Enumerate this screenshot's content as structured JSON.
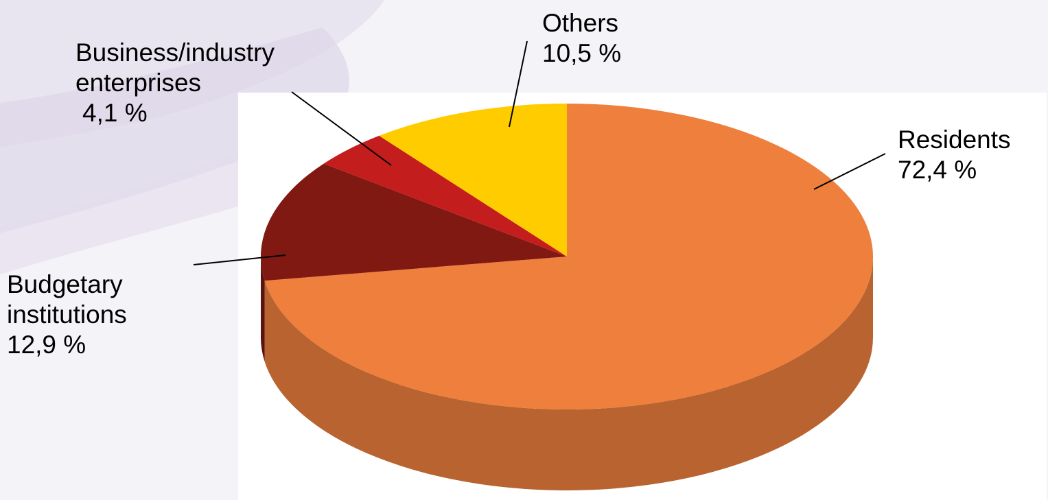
{
  "chart_data": {
    "type": "pie",
    "style": "3d",
    "title": "",
    "slices": [
      {
        "label": "Residents",
        "value": 72.4,
        "value_text": "72,4 %",
        "color": "#ef7f3c",
        "side_color": "#b96430"
      },
      {
        "label": "Budgetary institutions",
        "label_lines": [
          "Budgetary",
          "institutions"
        ],
        "value": 12.9,
        "value_text": "12,9 %",
        "color": "#801912",
        "side_color": "#5c120d"
      },
      {
        "label": "Business/industry enterprises",
        "label_lines": [
          "Business/industry",
          "enterprises"
        ],
        "value": 4.1,
        "value_text": "4,1 %",
        "color": "#c41d1d",
        "side_color": "#8e1515"
      },
      {
        "label": "Others",
        "value": 10.5,
        "value_text": "10,5 %",
        "color": "#ffcc00",
        "side_color": "#c49c00"
      }
    ],
    "legend": "none",
    "labels": "outside-with-leader-lines"
  }
}
